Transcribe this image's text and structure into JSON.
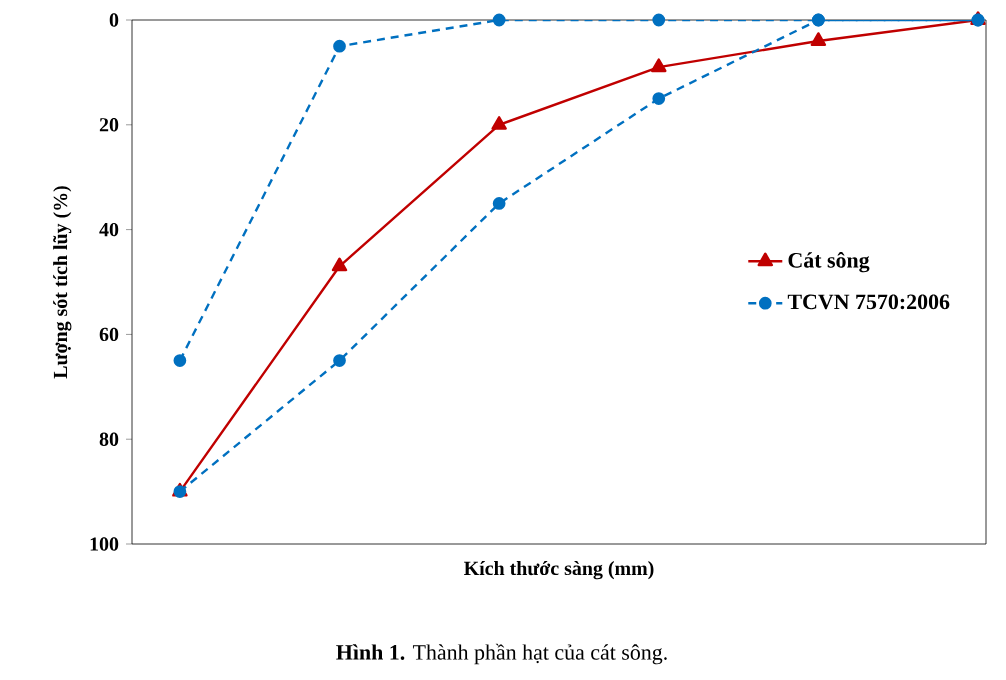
{
  "chart_data": {
    "type": "line",
    "xlabel": "Kích thước sàng (mm)",
    "ylabel": "Lượng sót tích lũy (%)",
    "annotations": [
      "**Hình 1.** Thành phần hạt của cát sông."
    ],
    "categories": [
      null,
      null,
      null,
      null,
      null,
      null
    ],
    "ylim": [
      100,
      0
    ],
    "yticks": [
      0,
      20,
      40,
      60,
      80,
      100
    ],
    "tick_labels": "y",
    "grid": false,
    "legend": "right",
    "series": [
      {
        "name": "Cát sông",
        "color": "#c00000",
        "marker": "triangle",
        "line_style": "solid",
        "values": [
          90,
          47,
          20,
          9,
          4,
          0
        ]
      },
      {
        "name": "TCVN 7570:2006",
        "color": "#0070c0",
        "marker": "circle",
        "line_style": "dashed",
        "values": [
          90,
          65,
          35,
          15,
          0,
          0
        ]
      },
      {
        "color": "#0070c0",
        "marker": "circle",
        "line_style": "dashed",
        "values": [
          65,
          5,
          0,
          0,
          0,
          0
        ]
      }
    ]
  }
}
